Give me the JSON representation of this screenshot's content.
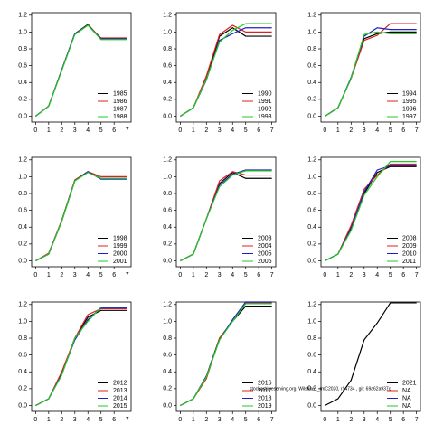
{
  "chart_data": [
    {
      "type": "line",
      "x": [
        0,
        1,
        2,
        3,
        4,
        5,
        6,
        7
      ],
      "xlim": [
        -0.3,
        7.3
      ],
      "ylim": [
        -0.07,
        1.23
      ],
      "xticks": [
        0,
        1,
        2,
        3,
        4,
        5,
        6,
        7
      ],
      "yticks": [
        {
          "value": 0,
          "label": "0.0"
        },
        {
          "value": 0.2,
          "label": "0.2"
        },
        {
          "value": 0.4,
          "label": "0.4"
        },
        {
          "value": 0.6,
          "label": "0.6"
        },
        {
          "value": 0.8,
          "label": "0.8"
        },
        {
          "value": 1,
          "label": "1.0"
        },
        {
          "value": 1.2,
          "label": "1.2"
        }
      ],
      "legend": "bottomright",
      "series": [
        {
          "name": "1985",
          "color": "#000000",
          "values": [
            0,
            0.12,
            0.55,
            0.98,
            1.09,
            0.92,
            0.92,
            0.92
          ]
        },
        {
          "name": "1986",
          "color": "#df2020",
          "values": [
            0,
            0.12,
            0.55,
            0.98,
            1.08,
            0.93,
            0.93,
            0.93
          ]
        },
        {
          "name": "1987",
          "color": "#2020c8",
          "values": [
            0,
            0.12,
            0.55,
            0.98,
            1.08,
            0.92,
            0.92,
            0.92
          ]
        },
        {
          "name": "1988",
          "color": "#22cc22",
          "values": [
            0,
            0.12,
            0.54,
            0.97,
            1.08,
            0.91,
            0.91,
            0.91
          ]
        }
      ]
    },
    {
      "type": "line",
      "x": [
        0,
        1,
        2,
        3,
        4,
        5,
        6,
        7
      ],
      "xlim": [
        -0.3,
        7.3
      ],
      "ylim": [
        -0.07,
        1.23
      ],
      "xticks": [
        0,
        1,
        2,
        3,
        4,
        5,
        6,
        7
      ],
      "yticks": [
        {
          "value": 0,
          "label": "0.0"
        },
        {
          "value": 0.2,
          "label": "0.2"
        },
        {
          "value": 0.4,
          "label": "0.4"
        },
        {
          "value": 0.6,
          "label": "0.6"
        },
        {
          "value": 0.8,
          "label": "0.8"
        },
        {
          "value": 1,
          "label": "1.0"
        },
        {
          "value": 1.2,
          "label": "1.2"
        }
      ],
      "legend": "bottomright",
      "series": [
        {
          "name": "1990",
          "color": "#000000",
          "values": [
            0,
            0.1,
            0.45,
            0.95,
            1.05,
            0.95,
            0.95,
            0.95
          ]
        },
        {
          "name": "1991",
          "color": "#df2020",
          "values": [
            0,
            0.1,
            0.48,
            0.97,
            1.08,
            1.0,
            1.0,
            1.0
          ]
        },
        {
          "name": "1992",
          "color": "#2020c8",
          "values": [
            0,
            0.1,
            0.43,
            0.9,
            0.98,
            1.05,
            1.05,
            1.05
          ]
        },
        {
          "name": "1993",
          "color": "#22cc22",
          "values": [
            0,
            0.1,
            0.44,
            0.88,
            1.02,
            1.1,
            1.1,
            1.1
          ]
        }
      ]
    },
    {
      "type": "line",
      "x": [
        0,
        1,
        2,
        3,
        4,
        5,
        6,
        7
      ],
      "xlim": [
        -0.3,
        7.3
      ],
      "ylim": [
        -0.07,
        1.23
      ],
      "xticks": [
        0,
        1,
        2,
        3,
        4,
        5,
        6,
        7
      ],
      "yticks": [
        {
          "value": 0,
          "label": "0.0"
        },
        {
          "value": 0.2,
          "label": "0.2"
        },
        {
          "value": 0.4,
          "label": "0.4"
        },
        {
          "value": 0.6,
          "label": "0.6"
        },
        {
          "value": 0.8,
          "label": "0.8"
        },
        {
          "value": 1,
          "label": "1.0"
        },
        {
          "value": 1.2,
          "label": "1.2"
        }
      ],
      "legend": "bottomright",
      "series": [
        {
          "name": "1994",
          "color": "#000000",
          "values": [
            0,
            0.1,
            0.45,
            0.92,
            0.98,
            1.0,
            1.0,
            1.0
          ]
        },
        {
          "name": "1995",
          "color": "#df2020",
          "values": [
            0,
            0.1,
            0.45,
            0.9,
            0.96,
            1.1,
            1.1,
            1.1
          ]
        },
        {
          "name": "1996",
          "color": "#2020c8",
          "values": [
            0,
            0.1,
            0.46,
            0.95,
            1.05,
            1.03,
            1.03,
            1.03
          ]
        },
        {
          "name": "1997",
          "color": "#22cc22",
          "values": [
            0,
            0.1,
            0.45,
            0.97,
            1.0,
            0.98,
            0.98,
            0.98
          ]
        }
      ]
    },
    {
      "type": "line",
      "x": [
        0,
        1,
        2,
        3,
        4,
        5,
        6,
        7
      ],
      "xlim": [
        -0.3,
        7.3
      ],
      "ylim": [
        -0.07,
        1.23
      ],
      "xticks": [
        0,
        1,
        2,
        3,
        4,
        5,
        6,
        7
      ],
      "yticks": [
        {
          "value": 0,
          "label": "0.0"
        },
        {
          "value": 0.2,
          "label": "0.2"
        },
        {
          "value": 0.4,
          "label": "0.4"
        },
        {
          "value": 0.6,
          "label": "0.6"
        },
        {
          "value": 0.8,
          "label": "0.8"
        },
        {
          "value": 1,
          "label": "1.0"
        },
        {
          "value": 1.2,
          "label": "1.2"
        }
      ],
      "legend": "bottomright",
      "series": [
        {
          "name": "1998",
          "color": "#000000",
          "values": [
            0,
            0.08,
            0.48,
            0.96,
            1.06,
            0.98,
            0.98,
            0.98
          ]
        },
        {
          "name": "1999",
          "color": "#df2020",
          "values": [
            0,
            0.09,
            0.48,
            0.96,
            1.06,
            1.0,
            1.0,
            1.0
          ]
        },
        {
          "name": "2000",
          "color": "#2020c8",
          "values": [
            0,
            0.08,
            0.47,
            0.95,
            1.06,
            0.97,
            0.97,
            0.97
          ]
        },
        {
          "name": "2001",
          "color": "#22cc22",
          "values": [
            0,
            0.08,
            0.47,
            0.95,
            1.05,
            0.98,
            0.98,
            0.98
          ]
        }
      ]
    },
    {
      "type": "line",
      "x": [
        0,
        1,
        2,
        3,
        4,
        5,
        6,
        7
      ],
      "xlim": [
        -0.3,
        7.3
      ],
      "ylim": [
        -0.07,
        1.23
      ],
      "xticks": [
        0,
        1,
        2,
        3,
        4,
        5,
        6,
        7
      ],
      "yticks": [
        {
          "value": 0,
          "label": "0.0"
        },
        {
          "value": 0.2,
          "label": "0.2"
        },
        {
          "value": 0.4,
          "label": "0.4"
        },
        {
          "value": 0.6,
          "label": "0.6"
        },
        {
          "value": 0.8,
          "label": "0.8"
        },
        {
          "value": 1,
          "label": "1.0"
        },
        {
          "value": 1.2,
          "label": "1.2"
        }
      ],
      "legend": "bottomright",
      "series": [
        {
          "name": "2003",
          "color": "#000000",
          "values": [
            0,
            0.08,
            0.5,
            0.92,
            1.05,
            0.98,
            0.98,
            0.98
          ]
        },
        {
          "name": "2004",
          "color": "#df2020",
          "values": [
            0,
            0.08,
            0.5,
            0.95,
            1.06,
            1.02,
            1.02,
            1.02
          ]
        },
        {
          "name": "2005",
          "color": "#2020c8",
          "values": [
            0,
            0.08,
            0.5,
            0.9,
            1.03,
            1.08,
            1.08,
            1.08
          ]
        },
        {
          "name": "2006",
          "color": "#22cc22",
          "values": [
            0,
            0.08,
            0.5,
            0.88,
            1.02,
            1.07,
            1.07,
            1.07
          ]
        }
      ]
    },
    {
      "type": "line",
      "x": [
        0,
        1,
        2,
        3,
        4,
        5,
        6,
        7
      ],
      "xlim": [
        -0.3,
        7.3
      ],
      "ylim": [
        -0.07,
        1.23
      ],
      "xticks": [
        0,
        1,
        2,
        3,
        4,
        5,
        6,
        7
      ],
      "yticks": [
        {
          "value": 0,
          "label": "0.0"
        },
        {
          "value": 0.2,
          "label": "0.2"
        },
        {
          "value": 0.4,
          "label": "0.4"
        },
        {
          "value": 0.6,
          "label": "0.6"
        },
        {
          "value": 0.8,
          "label": "0.8"
        },
        {
          "value": 1,
          "label": "1.0"
        },
        {
          "value": 1.2,
          "label": "1.2"
        }
      ],
      "legend": "bottomright",
      "series": [
        {
          "name": "2008",
          "color": "#000000",
          "values": [
            0,
            0.08,
            0.4,
            0.8,
            1.05,
            1.12,
            1.12,
            1.12
          ]
        },
        {
          "name": "2009",
          "color": "#df2020",
          "values": [
            0,
            0.08,
            0.42,
            0.85,
            1.02,
            1.15,
            1.15,
            1.15
          ]
        },
        {
          "name": "2010",
          "color": "#2020c8",
          "values": [
            0,
            0.08,
            0.38,
            0.82,
            1.08,
            1.13,
            1.13,
            1.13
          ]
        },
        {
          "name": "2011",
          "color": "#22cc22",
          "values": [
            0,
            0.08,
            0.36,
            0.78,
            1.0,
            1.18,
            1.18,
            1.18
          ]
        }
      ]
    },
    {
      "type": "line",
      "x": [
        0,
        1,
        2,
        3,
        4,
        5,
        6,
        7
      ],
      "xlim": [
        -0.3,
        7.3
      ],
      "ylim": [
        -0.07,
        1.23
      ],
      "xticks": [
        0,
        1,
        2,
        3,
        4,
        5,
        6,
        7
      ],
      "yticks": [
        {
          "value": 0,
          "label": "0.0"
        },
        {
          "value": 0.2,
          "label": "0.2"
        },
        {
          "value": 0.4,
          "label": "0.4"
        },
        {
          "value": 0.6,
          "label": "0.6"
        },
        {
          "value": 0.8,
          "label": "0.8"
        },
        {
          "value": 1,
          "label": "1.0"
        },
        {
          "value": 1.2,
          "label": "1.2"
        }
      ],
      "legend": "bottomright",
      "series": [
        {
          "name": "2012",
          "color": "#000000",
          "values": [
            0,
            0.08,
            0.38,
            0.8,
            1.05,
            1.13,
            1.13,
            1.13
          ]
        },
        {
          "name": "2013",
          "color": "#df2020",
          "values": [
            0,
            0.08,
            0.4,
            0.8,
            1.08,
            1.15,
            1.15,
            1.15
          ]
        },
        {
          "name": "2014",
          "color": "#2020c8",
          "values": [
            0,
            0.08,
            0.37,
            0.78,
            1.02,
            1.16,
            1.16,
            1.16
          ]
        },
        {
          "name": "2015",
          "color": "#22cc22",
          "values": [
            0,
            0.08,
            0.36,
            0.8,
            1.0,
            1.17,
            1.17,
            1.17
          ]
        }
      ]
    },
    {
      "type": "line",
      "x": [
        0,
        1,
        2,
        3,
        4,
        5,
        6,
        7
      ],
      "xlim": [
        -0.3,
        7.3
      ],
      "ylim": [
        -0.07,
        1.23
      ],
      "xticks": [
        0,
        1,
        2,
        3,
        4,
        5,
        6,
        7
      ],
      "yticks": [
        {
          "value": 0,
          "label": "0.0"
        },
        {
          "value": 0.2,
          "label": "0.2"
        },
        {
          "value": 0.4,
          "label": "0.4"
        },
        {
          "value": 0.6,
          "label": "0.6"
        },
        {
          "value": 0.8,
          "label": "0.8"
        },
        {
          "value": 1,
          "label": "1.0"
        },
        {
          "value": 1.2,
          "label": "1.2"
        }
      ],
      "legend": "bottomright",
      "annotation": "stochasticreserving.org, Wilshire1_rmC2020, r14734 , git: 69a62a937c",
      "series": [
        {
          "name": "2016",
          "color": "#000000",
          "values": [
            0,
            0.08,
            0.35,
            0.8,
            1.0,
            1.18,
            1.18,
            1.18
          ]
        },
        {
          "name": "2017",
          "color": "#df2020",
          "values": [
            0,
            0.08,
            0.32,
            0.8,
            1.0,
            1.22,
            1.22,
            1.22
          ]
        },
        {
          "name": "2018",
          "color": "#2020c8",
          "values": [
            0,
            0.08,
            0.35,
            0.78,
            1.02,
            1.23,
            1.23,
            1.23
          ]
        },
        {
          "name": "2019",
          "color": "#22cc22",
          "values": [
            0,
            0.08,
            0.34,
            0.78,
            1.0,
            1.21,
            1.21,
            1.21
          ]
        }
      ]
    },
    {
      "type": "line",
      "x": [
        0,
        1,
        2,
        3,
        4,
        5,
        6,
        7
      ],
      "xlim": [
        -0.3,
        7.3
      ],
      "ylim": [
        -0.07,
        1.23
      ],
      "xticks": [
        0,
        1,
        2,
        3,
        4,
        5,
        6,
        7
      ],
      "yticks": [
        {
          "value": 0,
          "label": "0.0"
        },
        {
          "value": 0.2,
          "label": "0.2"
        },
        {
          "value": 0.4,
          "label": "0.4"
        },
        {
          "value": 0.6,
          "label": "0.6"
        },
        {
          "value": 0.8,
          "label": "0.8"
        },
        {
          "value": 1,
          "label": "1.0"
        },
        {
          "value": 1.2,
          "label": "1.2"
        }
      ],
      "legend": "bottomright",
      "series": [
        {
          "name": "2021",
          "color": "#000000",
          "values": [
            0,
            0.08,
            0.3,
            0.78,
            0.98,
            1.22,
            1.22,
            1.22
          ]
        },
        {
          "name": "NA",
          "color": "#df2020",
          "values": [
            null,
            null,
            null,
            null,
            null,
            null,
            null,
            null
          ]
        },
        {
          "name": "NA",
          "color": "#2020c8",
          "values": [
            null,
            null,
            null,
            null,
            null,
            null,
            null,
            null
          ]
        },
        {
          "name": "NA",
          "color": "#22cc22",
          "values": [
            null,
            null,
            null,
            null,
            null,
            null,
            null,
            null
          ]
        }
      ]
    }
  ]
}
